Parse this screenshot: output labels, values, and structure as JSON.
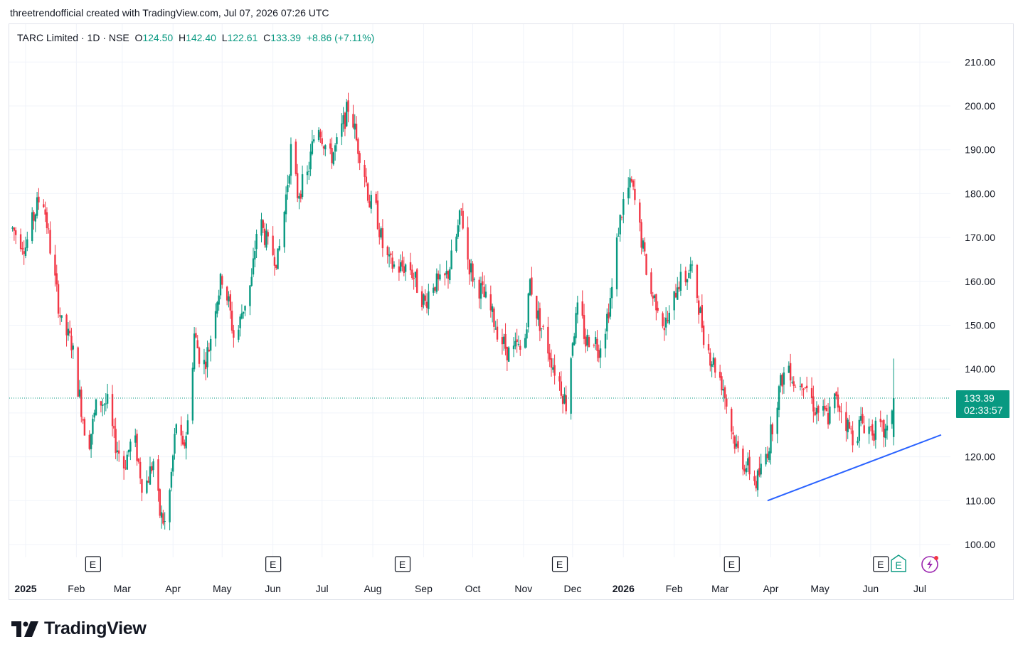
{
  "header": {
    "caption": "threetrendofficial created with TradingView.com, Jul 07, 2026 07:26 UTC"
  },
  "legend": {
    "symbol": "TARC Limited · 1D · NSE",
    "open_label": "O",
    "open": "124.50",
    "high_label": "H",
    "high": "142.40",
    "low_label": "L",
    "low": "122.61",
    "close_label": "C",
    "close": "133.39",
    "change": "+8.86 (+7.11%)"
  },
  "price_badge": {
    "price": "133.39",
    "countdown": "02:33:57"
  },
  "footer": {
    "brand": "TradingView"
  },
  "colors": {
    "up": "#089981",
    "down": "#f23645",
    "trendline": "#2962ff",
    "grid": "#f0f3fa"
  },
  "chart_data": {
    "type": "candlestick",
    "ylim": [
      100,
      210
    ],
    "y_ticks": [
      "210.00",
      "200.00",
      "190.00",
      "180.00",
      "170.00",
      "160.00",
      "150.00",
      "140.00",
      "120.00",
      "110.00",
      "100.00"
    ],
    "x_ticks": [
      {
        "label": "2025",
        "bold": true,
        "day": 0
      },
      {
        "label": "Feb",
        "day": 31
      },
      {
        "label": "Mar",
        "day": 59
      },
      {
        "label": "Apr",
        "day": 90
      },
      {
        "label": "May",
        "day": 120
      },
      {
        "label": "Jun",
        "day": 151
      },
      {
        "label": "Jul",
        "day": 181
      },
      {
        "label": "Aug",
        "day": 212
      },
      {
        "label": "Sep",
        "day": 243
      },
      {
        "label": "Oct",
        "day": 273
      },
      {
        "label": "Nov",
        "day": 304
      },
      {
        "label": "Dec",
        "day": 334
      },
      {
        "label": "2026",
        "bold": true,
        "day": 365
      },
      {
        "label": "Feb",
        "day": 396
      },
      {
        "label": "Mar",
        "day": 424
      },
      {
        "label": "Apr",
        "day": 455
      },
      {
        "label": "May",
        "day": 485
      },
      {
        "label": "Jun",
        "day": 516
      },
      {
        "label": "Jul",
        "day": 546
      }
    ],
    "earnings_days": [
      41,
      151,
      230,
      326,
      431,
      522
    ],
    "current_price": 133.39,
    "trendline": {
      "start": {
        "date": "2026-03-30",
        "price": 110
      },
      "end": {
        "date": "2026-07-14",
        "price": 125
      }
    },
    "anchors": [
      [
        -8,
        172
      ],
      [
        0,
        168
      ],
      [
        6,
        176
      ],
      [
        10,
        181
      ],
      [
        16,
        165
      ],
      [
        22,
        150
      ],
      [
        28,
        146
      ],
      [
        32,
        136
      ],
      [
        38,
        122
      ],
      [
        44,
        133
      ],
      [
        50,
        132
      ],
      [
        54,
        124
      ],
      [
        60,
        118
      ],
      [
        66,
        125
      ],
      [
        72,
        112
      ],
      [
        78,
        119
      ],
      [
        82,
        107
      ],
      [
        86,
        104
      ],
      [
        90,
        120
      ],
      [
        92,
        128
      ],
      [
        96,
        121
      ],
      [
        100,
        130
      ],
      [
        103,
        148
      ],
      [
        108,
        140
      ],
      [
        112,
        145
      ],
      [
        116,
        155
      ],
      [
        120,
        161
      ],
      [
        124,
        155
      ],
      [
        128,
        145
      ],
      [
        132,
        153
      ],
      [
        138,
        160
      ],
      [
        142,
        175
      ],
      [
        148,
        168
      ],
      [
        154,
        165
      ],
      [
        158,
        176
      ],
      [
        162,
        190
      ],
      [
        166,
        180
      ],
      [
        172,
        184
      ],
      [
        178,
        197
      ],
      [
        182,
        192
      ],
      [
        186,
        188
      ],
      [
        190,
        191
      ],
      [
        194,
        196
      ],
      [
        198,
        201
      ],
      [
        202,
        192
      ],
      [
        206,
        187
      ],
      [
        210,
        178
      ],
      [
        214,
        176
      ],
      [
        218,
        168
      ],
      [
        222,
        164
      ],
      [
        228,
        163
      ],
      [
        234,
        164
      ],
      [
        240,
        158
      ],
      [
        244,
        155
      ],
      [
        248,
        160
      ],
      [
        254,
        159
      ],
      [
        258,
        162
      ],
      [
        262,
        168
      ],
      [
        266,
        176
      ],
      [
        270,
        165
      ],
      [
        274,
        160
      ],
      [
        278,
        158
      ],
      [
        284,
        153
      ],
      [
        290,
        147
      ],
      [
        296,
        143
      ],
      [
        300,
        145
      ],
      [
        304,
        143
      ],
      [
        308,
        160
      ],
      [
        312,
        153
      ],
      [
        318,
        146
      ],
      [
        322,
        141
      ],
      [
        326,
        137
      ],
      [
        330,
        132
      ],
      [
        334,
        147
      ],
      [
        338,
        155
      ],
      [
        342,
        146
      ],
      [
        346,
        148
      ],
      [
        350,
        145
      ],
      [
        354,
        150
      ],
      [
        358,
        158
      ],
      [
        362,
        172
      ],
      [
        366,
        180
      ],
      [
        370,
        182
      ],
      [
        374,
        174
      ],
      [
        378,
        165
      ],
      [
        382,
        157
      ],
      [
        386,
        155
      ],
      [
        390,
        150
      ],
      [
        394,
        152
      ],
      [
        398,
        160
      ],
      [
        402,
        160
      ],
      [
        406,
        163
      ],
      [
        410,
        157
      ],
      [
        414,
        148
      ],
      [
        418,
        143
      ],
      [
        422,
        140
      ],
      [
        426,
        136
      ],
      [
        430,
        128
      ],
      [
        434,
        122
      ],
      [
        438,
        119
      ],
      [
        442,
        117
      ],
      [
        446,
        114
      ],
      [
        450,
        118
      ],
      [
        454,
        123
      ],
      [
        458,
        132
      ],
      [
        462,
        138
      ],
      [
        466,
        141
      ],
      [
        470,
        136
      ],
      [
        474,
        138
      ],
      [
        478,
        135
      ],
      [
        482,
        131
      ],
      [
        486,
        130
      ],
      [
        490,
        129
      ],
      [
        494,
        133
      ],
      [
        498,
        131
      ],
      [
        502,
        127
      ],
      [
        506,
        124
      ],
      [
        510,
        128
      ],
      [
        514,
        127
      ],
      [
        518,
        126
      ],
      [
        522,
        126
      ],
      [
        526,
        125
      ],
      [
        530,
        134
      ]
    ]
  }
}
